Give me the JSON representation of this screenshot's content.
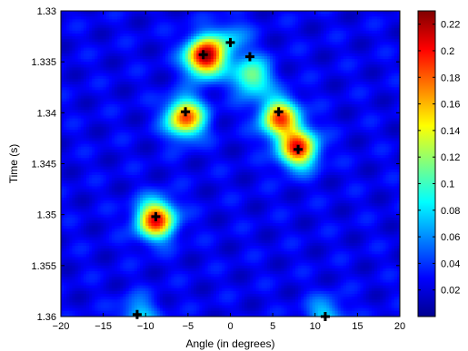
{
  "chart_data": {
    "type": "heatmap",
    "title": "",
    "xlabel": "Angle (in degrees)",
    "ylabel": "Time (s)",
    "xlim": [
      -20,
      20
    ],
    "ylim": [
      1.33,
      1.36
    ],
    "y_reversed": true,
    "x_ticks": [
      -20,
      -15,
      -10,
      -5,
      0,
      5,
      10,
      15,
      20
    ],
    "x_tick_labels": [
      "−20",
      "−15",
      "−10",
      "−5",
      "0",
      "5",
      "10",
      "15",
      "20"
    ],
    "y_ticks": [
      1.33,
      1.335,
      1.34,
      1.345,
      1.35,
      1.355,
      1.36
    ],
    "y_tick_labels": [
      "1.33",
      "1.335",
      "1.34",
      "1.345",
      "1.35",
      "1.355",
      "1.36"
    ],
    "colormap": "jet",
    "colorbar": {
      "min": 0,
      "max": 0.23,
      "ticks": [
        0.02,
        0.04,
        0.06,
        0.08,
        0.1,
        0.12,
        0.14,
        0.16,
        0.18,
        0.2,
        0.22
      ],
      "tick_labels": [
        "0.02",
        "0.04",
        "0.06",
        "0.08",
        "0.1",
        "0.12",
        "0.14",
        "0.16",
        "0.18",
        "0.2",
        "0.22"
      ]
    },
    "background_level": 0.025,
    "peaks": [
      {
        "x": -3.0,
        "y": 1.3345,
        "value": 0.228
      },
      {
        "x": 0.0,
        "y": 1.3328,
        "value": 0.07
      },
      {
        "x": 2.5,
        "y": 1.3365,
        "value": 0.12
      },
      {
        "x": -5.3,
        "y": 1.3405,
        "value": 0.185
      },
      {
        "x": 5.8,
        "y": 1.3405,
        "value": 0.18
      },
      {
        "x": 8.0,
        "y": 1.3435,
        "value": 0.195
      },
      {
        "x": -8.8,
        "y": 1.3505,
        "value": 0.2
      },
      {
        "x": -10.8,
        "y": 1.36,
        "value": 0.08
      },
      {
        "x": 11.2,
        "y": 1.36,
        "value": 0.08
      }
    ],
    "markers": [
      {
        "x": -3.2,
        "y": 1.3343
      },
      {
        "x": 0.0,
        "y": 1.3331
      },
      {
        "x": 2.3,
        "y": 1.3345
      },
      {
        "x": -5.3,
        "y": 1.3399
      },
      {
        "x": 5.7,
        "y": 1.3399
      },
      {
        "x": 8.0,
        "y": 1.3436
      },
      {
        "x": -8.8,
        "y": 1.3502
      },
      {
        "x": -11.0,
        "y": 1.3598
      },
      {
        "x": 11.2,
        "y": 1.36
      }
    ],
    "marker_symbol": "+",
    "grid": false
  }
}
